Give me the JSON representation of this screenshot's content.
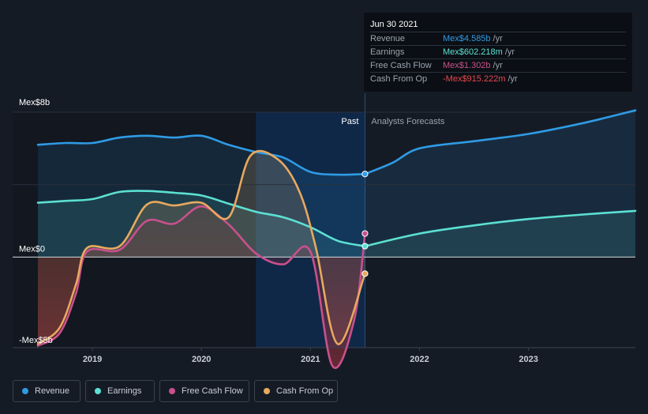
{
  "chart_data": {
    "type": "area",
    "ylabel_top": "Mex$8b",
    "ylabel_zero": "Mex$0",
    "ylabel_bottom": "-Mex$5b",
    "ylim": [
      -5.0,
      8.0
    ],
    "xlim": [
      2018.5,
      2023.98
    ],
    "x_ticks": [
      {
        "x": 2019,
        "label": "2019"
      },
      {
        "x": 2020,
        "label": "2020"
      },
      {
        "x": 2021,
        "label": "2021"
      },
      {
        "x": 2022,
        "label": "2022"
      },
      {
        "x": 2023,
        "label": "2023"
      }
    ],
    "past_label": "Past",
    "forecast_label": "Analysts Forecasts",
    "forecast_start": 2021.5,
    "highlight_start": 2020.5,
    "series": [
      {
        "name": "Revenue",
        "color": "#2f9be4",
        "points": [
          [
            2018.5,
            6.2
          ],
          [
            2018.75,
            6.3
          ],
          [
            2019.0,
            6.3
          ],
          [
            2019.25,
            6.6
          ],
          [
            2019.5,
            6.7
          ],
          [
            2019.75,
            6.6
          ],
          [
            2020.0,
            6.7
          ],
          [
            2020.25,
            6.2
          ],
          [
            2020.5,
            5.8
          ],
          [
            2020.75,
            5.5
          ],
          [
            2021.0,
            4.7
          ],
          [
            2021.25,
            4.55
          ],
          [
            2021.5,
            4.585
          ]
        ],
        "forecast": [
          [
            2021.5,
            4.585
          ],
          [
            2021.75,
            5.2
          ],
          [
            2022.0,
            6.0
          ],
          [
            2022.5,
            6.4
          ],
          [
            2023.0,
            6.8
          ],
          [
            2023.5,
            7.4
          ],
          [
            2023.98,
            8.1
          ]
        ]
      },
      {
        "name": "Earnings",
        "color": "#5ce0d2",
        "points": [
          [
            2018.5,
            3.0
          ],
          [
            2018.75,
            3.1
          ],
          [
            2019.0,
            3.2
          ],
          [
            2019.25,
            3.6
          ],
          [
            2019.5,
            3.65
          ],
          [
            2019.75,
            3.55
          ],
          [
            2020.0,
            3.4
          ],
          [
            2020.25,
            2.95
          ],
          [
            2020.5,
            2.5
          ],
          [
            2020.75,
            2.2
          ],
          [
            2021.0,
            1.65
          ],
          [
            2021.25,
            0.9
          ],
          [
            2021.5,
            0.602
          ]
        ],
        "forecast": [
          [
            2021.5,
            0.602
          ],
          [
            2022.0,
            1.3
          ],
          [
            2022.5,
            1.75
          ],
          [
            2023.0,
            2.1
          ],
          [
            2023.5,
            2.35
          ],
          [
            2023.98,
            2.55
          ]
        ]
      },
      {
        "name": "Free Cash Flow",
        "color": "#c9508c",
        "points": [
          [
            2018.5,
            -4.9
          ],
          [
            2018.7,
            -4.2
          ],
          [
            2018.85,
            -2.0
          ],
          [
            2018.95,
            0.3
          ],
          [
            2019.25,
            0.4
          ],
          [
            2019.5,
            2.0
          ],
          [
            2019.75,
            1.85
          ],
          [
            2020.0,
            2.8
          ],
          [
            2020.25,
            1.8
          ],
          [
            2020.5,
            0.2
          ],
          [
            2020.75,
            -0.4
          ],
          [
            2021.0,
            0.3
          ],
          [
            2021.2,
            -6.0
          ],
          [
            2021.4,
            -3.5
          ],
          [
            2021.5,
            1.302
          ]
        ]
      },
      {
        "name": "Cash From Op",
        "color": "#e8a95e",
        "points": [
          [
            2018.5,
            -4.8
          ],
          [
            2018.7,
            -3.9
          ],
          [
            2018.85,
            -1.5
          ],
          [
            2018.95,
            0.5
          ],
          [
            2019.25,
            0.6
          ],
          [
            2019.5,
            2.9
          ],
          [
            2019.75,
            2.85
          ],
          [
            2020.0,
            3.0
          ],
          [
            2020.25,
            2.2
          ],
          [
            2020.45,
            5.6
          ],
          [
            2020.7,
            5.4
          ],
          [
            2020.9,
            3.6
          ],
          [
            2021.05,
            0.5
          ],
          [
            2021.25,
            -4.8
          ],
          [
            2021.5,
            -0.915
          ]
        ]
      }
    ],
    "tooltip": {
      "date": "Jun 30 2021",
      "rows": [
        {
          "label": "Revenue",
          "value": "Mex$4.585b",
          "unit": "/yr",
          "color": "#2f9be4"
        },
        {
          "label": "Earnings",
          "value": "Mex$602.218m",
          "unit": "/yr",
          "color": "#5ce0d2"
        },
        {
          "label": "Free Cash Flow",
          "value": "Mex$1.302b",
          "unit": "/yr",
          "color": "#c9508c"
        },
        {
          "label": "Cash From Op",
          "value": "-Mex$915.222m",
          "unit": "/yr",
          "color": "#e3484f"
        }
      ]
    }
  },
  "legend": [
    {
      "label": "Revenue",
      "color": "#2f9be4"
    },
    {
      "label": "Earnings",
      "color": "#5ce0d2"
    },
    {
      "label": "Free Cash Flow",
      "color": "#c9508c"
    },
    {
      "label": "Cash From Op",
      "color": "#e8a95e"
    }
  ]
}
